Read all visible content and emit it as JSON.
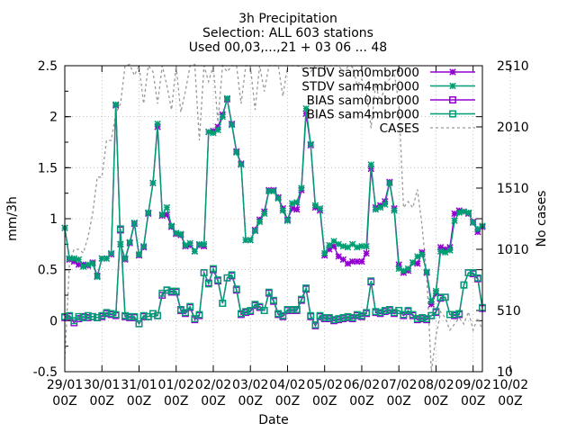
{
  "chart_data": {
    "type": "line",
    "title_lines": [
      "3h Precipitation",
      "Selection: ALL    603 stations",
      "Used 00,03,...,21 + 03 06 ... 48"
    ],
    "xlabel": "Date",
    "ylabel": "mm/3h",
    "y2label": "No cases",
    "ylim": [
      -0.5,
      2.5
    ],
    "y2lim": [
      10,
      2510
    ],
    "y_ticks": [
      "-0.5",
      "0",
      "0.5",
      "1",
      "1.5",
      "2",
      "2.5"
    ],
    "y2_ticks": [
      "10",
      "510",
      "1010",
      "1510",
      "2010",
      "2510"
    ],
    "x_ticks": [
      {
        "day": "29/01",
        "hour": "00Z"
      },
      {
        "day": "30/01",
        "hour": "00Z"
      },
      {
        "day": "31/01",
        "hour": "00Z"
      },
      {
        "day": "01/02",
        "hour": "00Z"
      },
      {
        "day": "02/02",
        "hour": "00Z"
      },
      {
        "day": "03/02",
        "hour": "00Z"
      },
      {
        "day": "04/02",
        "hour": "00Z"
      },
      {
        "day": "05/02",
        "hour": "00Z"
      },
      {
        "day": "06/02",
        "hour": "00Z"
      },
      {
        "day": "07/02",
        "hour": "00Z"
      },
      {
        "day": "08/02",
        "hour": "00Z"
      },
      {
        "day": "09/02",
        "hour": "00Z"
      },
      {
        "day": "10/02",
        "hour": "00Z"
      }
    ],
    "x_step_hours": 3,
    "x_start": "29/01 00Z",
    "grid": true,
    "legend_position": "top-right",
    "series": [
      {
        "name": "STDV sam0mbr000",
        "color": "#9400d3",
        "marker": "star",
        "values": [
          0.91,
          0.6,
          0.58,
          0.55,
          0.55,
          0.54,
          0.57,
          0.44,
          0.61,
          0.61,
          0.65,
          2.11,
          0.75,
          0.6,
          0.76,
          0.95,
          0.64,
          0.72,
          1.05,
          1.35,
          1.9,
          1.03,
          1.04,
          0.92,
          0.85,
          0.84,
          0.73,
          0.74,
          0.68,
          0.74,
          0.73,
          1.85,
          1.86,
          1.9,
          2.02,
          2.17,
          1.93,
          1.66,
          1.54,
          0.79,
          0.79,
          0.89,
          0.99,
          1.07,
          1.28,
          1.28,
          1.21,
          1.1,
          0.99,
          1.1,
          1.09,
          1.28,
          2.03,
          1.72,
          1.11,
          1.08,
          0.64,
          0.7,
          0.73,
          0.63,
          0.6,
          0.56,
          0.58,
          0.58,
          0.58,
          0.66,
          1.49,
          1.11,
          1.13,
          1.17,
          1.36,
          1.1,
          0.55,
          0.47,
          0.49,
          0.57,
          0.56,
          0.67,
          0.47,
          0.16,
          0.27,
          0.72,
          0.7,
          0.72,
          1.05,
          1.08,
          1.07,
          1.05,
          0.97,
          0.87,
          0.92
        ]
      },
      {
        "name": "STDV sam4mbr000",
        "color": "#009e73",
        "marker": "star",
        "values": [
          0.91,
          0.61,
          0.61,
          0.6,
          0.53,
          0.55,
          0.56,
          0.43,
          0.61,
          0.61,
          0.66,
          2.12,
          0.75,
          0.61,
          0.77,
          0.96,
          0.65,
          0.73,
          1.06,
          1.35,
          1.93,
          1.04,
          1.11,
          0.93,
          0.86,
          0.85,
          0.74,
          0.76,
          0.68,
          0.75,
          0.75,
          1.85,
          1.84,
          1.87,
          2.0,
          2.18,
          1.92,
          1.65,
          1.53,
          0.79,
          0.79,
          0.88,
          0.97,
          1.05,
          1.27,
          1.27,
          1.2,
          1.08,
          0.98,
          1.15,
          1.16,
          1.3,
          2.08,
          1.73,
          1.13,
          1.1,
          0.66,
          0.74,
          0.78,
          0.75,
          0.73,
          0.72,
          0.75,
          0.72,
          0.73,
          0.73,
          1.53,
          1.09,
          1.11,
          1.14,
          1.35,
          1.08,
          0.51,
          0.49,
          0.51,
          0.57,
          0.63,
          0.65,
          0.48,
          0.19,
          0.29,
          0.68,
          0.67,
          0.69,
          0.98,
          1.06,
          1.07,
          1.06,
          0.96,
          0.9,
          0.93
        ]
      },
      {
        "name": "BIAS sam0mbr000",
        "color": "#9400d3",
        "marker": "square",
        "values": [
          0.03,
          0.04,
          -0.02,
          0.02,
          0.04,
          0.03,
          0.04,
          0.03,
          0.04,
          0.07,
          0.06,
          0.05,
          0.89,
          0.04,
          0.03,
          0.03,
          -0.03,
          0.04,
          0.04,
          0.07,
          0.05,
          0.25,
          0.3,
          0.28,
          0.28,
          0.1,
          0.07,
          0.13,
          0.01,
          0.05,
          0.47,
          0.37,
          0.5,
          0.39,
          0.17,
          0.42,
          0.44,
          0.3,
          0.06,
          0.08,
          0.09,
          0.15,
          0.13,
          0.1,
          0.27,
          0.19,
          0.06,
          0.04,
          0.1,
          0.1,
          0.1,
          0.2,
          0.31,
          0.04,
          -0.05,
          0.04,
          0.02,
          0.02,
          0.0,
          0.01,
          0.02,
          0.03,
          0.02,
          0.05,
          0.04,
          0.07,
          0.38,
          0.08,
          0.07,
          0.09,
          0.1,
          0.07,
          0.1,
          0.05,
          0.09,
          0.05,
          0.01,
          0.02,
          0.01,
          0.05,
          0.08,
          0.22,
          0.23,
          0.06,
          0.05,
          0.06,
          0.35,
          0.47,
          0.46,
          0.41,
          0.12
        ]
      },
      {
        "name": "BIAS sam4mbr000",
        "color": "#009e73",
        "marker": "square",
        "values": [
          0.04,
          0.05,
          0.0,
          0.04,
          0.03,
          0.05,
          0.04,
          0.03,
          0.05,
          0.08,
          0.07,
          0.06,
          0.9,
          0.05,
          0.04,
          0.04,
          -0.03,
          0.05,
          0.04,
          0.07,
          0.05,
          0.27,
          0.3,
          0.29,
          0.29,
          0.11,
          0.08,
          0.14,
          0.02,
          0.06,
          0.47,
          0.36,
          0.51,
          0.4,
          0.17,
          0.42,
          0.45,
          0.31,
          0.07,
          0.09,
          0.1,
          0.16,
          0.14,
          0.1,
          0.28,
          0.2,
          0.07,
          0.05,
          0.11,
          0.11,
          0.11,
          0.21,
          0.32,
          0.05,
          -0.04,
          0.05,
          0.03,
          0.03,
          0.01,
          0.02,
          0.03,
          0.04,
          0.03,
          0.06,
          0.05,
          0.08,
          0.39,
          0.09,
          0.08,
          0.1,
          0.11,
          0.08,
          0.1,
          0.06,
          0.1,
          0.06,
          0.02,
          0.03,
          0.02,
          0.05,
          0.09,
          0.23,
          0.23,
          0.06,
          0.06,
          0.07,
          0.35,
          0.47,
          0.47,
          0.42,
          0.13
        ]
      },
      {
        "name": "CASES",
        "color": "#999999",
        "dash": true,
        "axis": "y2",
        "values": [
          110,
          900,
          1010,
          1010,
          980,
          1110,
          1300,
          1600,
          1600,
          1900,
          1900,
          2120,
          2200,
          2510,
          2520,
          2430,
          2510,
          2200,
          2510,
          2460,
          2200,
          2510,
          2350,
          2150,
          2510,
          2130,
          2300,
          2510,
          2520,
          1900,
          2510,
          2380,
          2510,
          2050,
          2510,
          2460,
          2510,
          2510,
          2200,
          2510,
          2510,
          2150,
          2510,
          2300,
          2510,
          2510,
          2510,
          2260,
          2510,
          2510,
          2510,
          2500,
          2460,
          2460,
          2510,
          2510,
          2510,
          2510,
          2510,
          2510,
          2460,
          2500,
          2500,
          2350,
          2400,
          2300,
          2000,
          2360,
          2200,
          2350,
          2400,
          2450,
          2200,
          1350,
          1400,
          1350,
          1500,
          1200,
          800,
          10,
          300,
          500,
          450,
          350,
          400,
          450,
          400,
          500,
          350,
          450,
          350
        ]
      }
    ]
  }
}
